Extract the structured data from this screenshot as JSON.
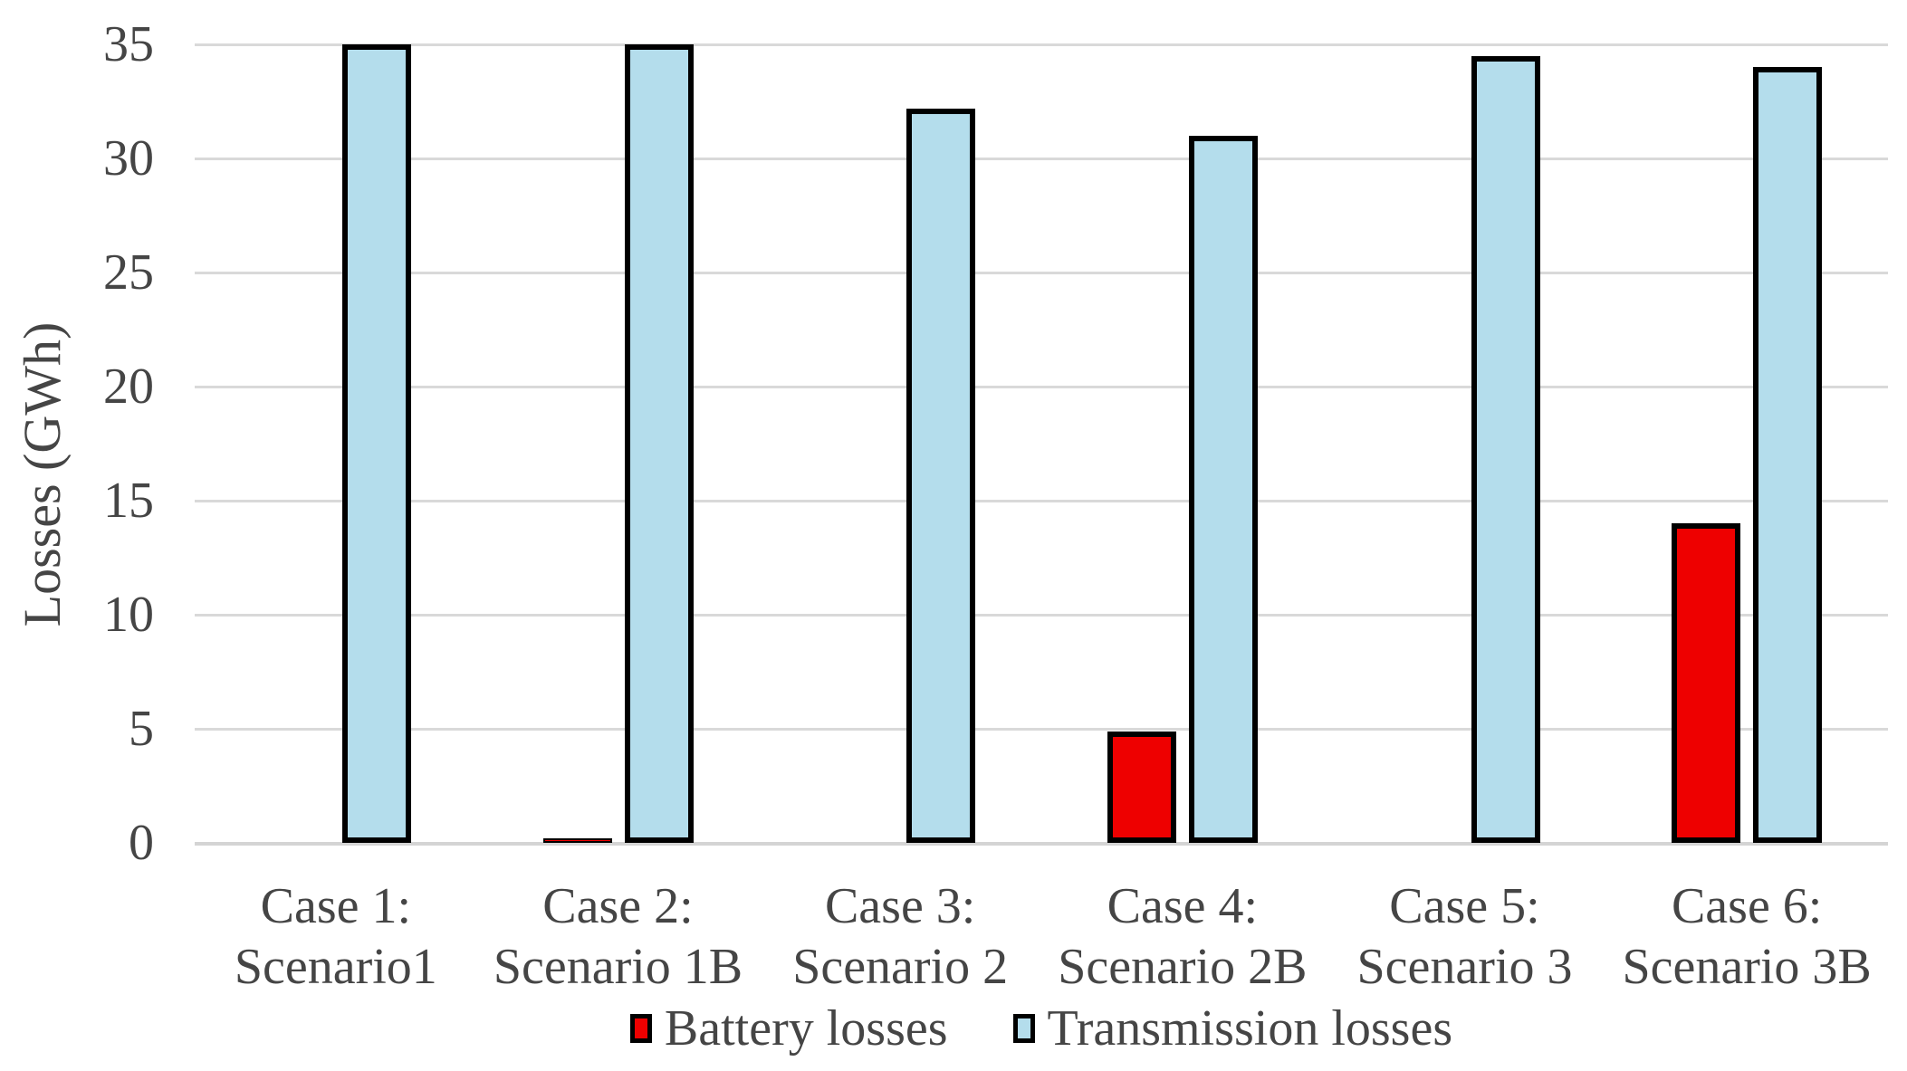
{
  "chart_data": {
    "type": "bar",
    "title": "",
    "xlabel": "",
    "ylabel": "Losses (GWh)",
    "ylim": [
      0,
      35
    ],
    "yticks": [
      0,
      5,
      10,
      15,
      20,
      25,
      30,
      35
    ],
    "grid": true,
    "legend_position": "bottom-center",
    "categories": [
      "Case 1:\nScenario1",
      "Case 2:\nScenario 1B",
      "Case 3:\nScenario 2",
      "Case 4:\nScenario 2B",
      "Case 5:\nScenario 3",
      "Case 6:\nScenario 3B"
    ],
    "series": [
      {
        "name": "Battery losses",
        "color": "#EE0000",
        "values": [
          0,
          0.2,
          0,
          4.9,
          0,
          14
        ]
      },
      {
        "name": "Transmission losses",
        "color": "#B4DDEC",
        "values": [
          35,
          35,
          32.2,
          31,
          34.5,
          34
        ]
      }
    ]
  },
  "styles": {
    "background": "#FFFFFF",
    "text_color": "#454545",
    "grid_color": "#D9D9D9",
    "zero_line_color": "#D4D4D4",
    "bar_border_color": "#000000"
  }
}
